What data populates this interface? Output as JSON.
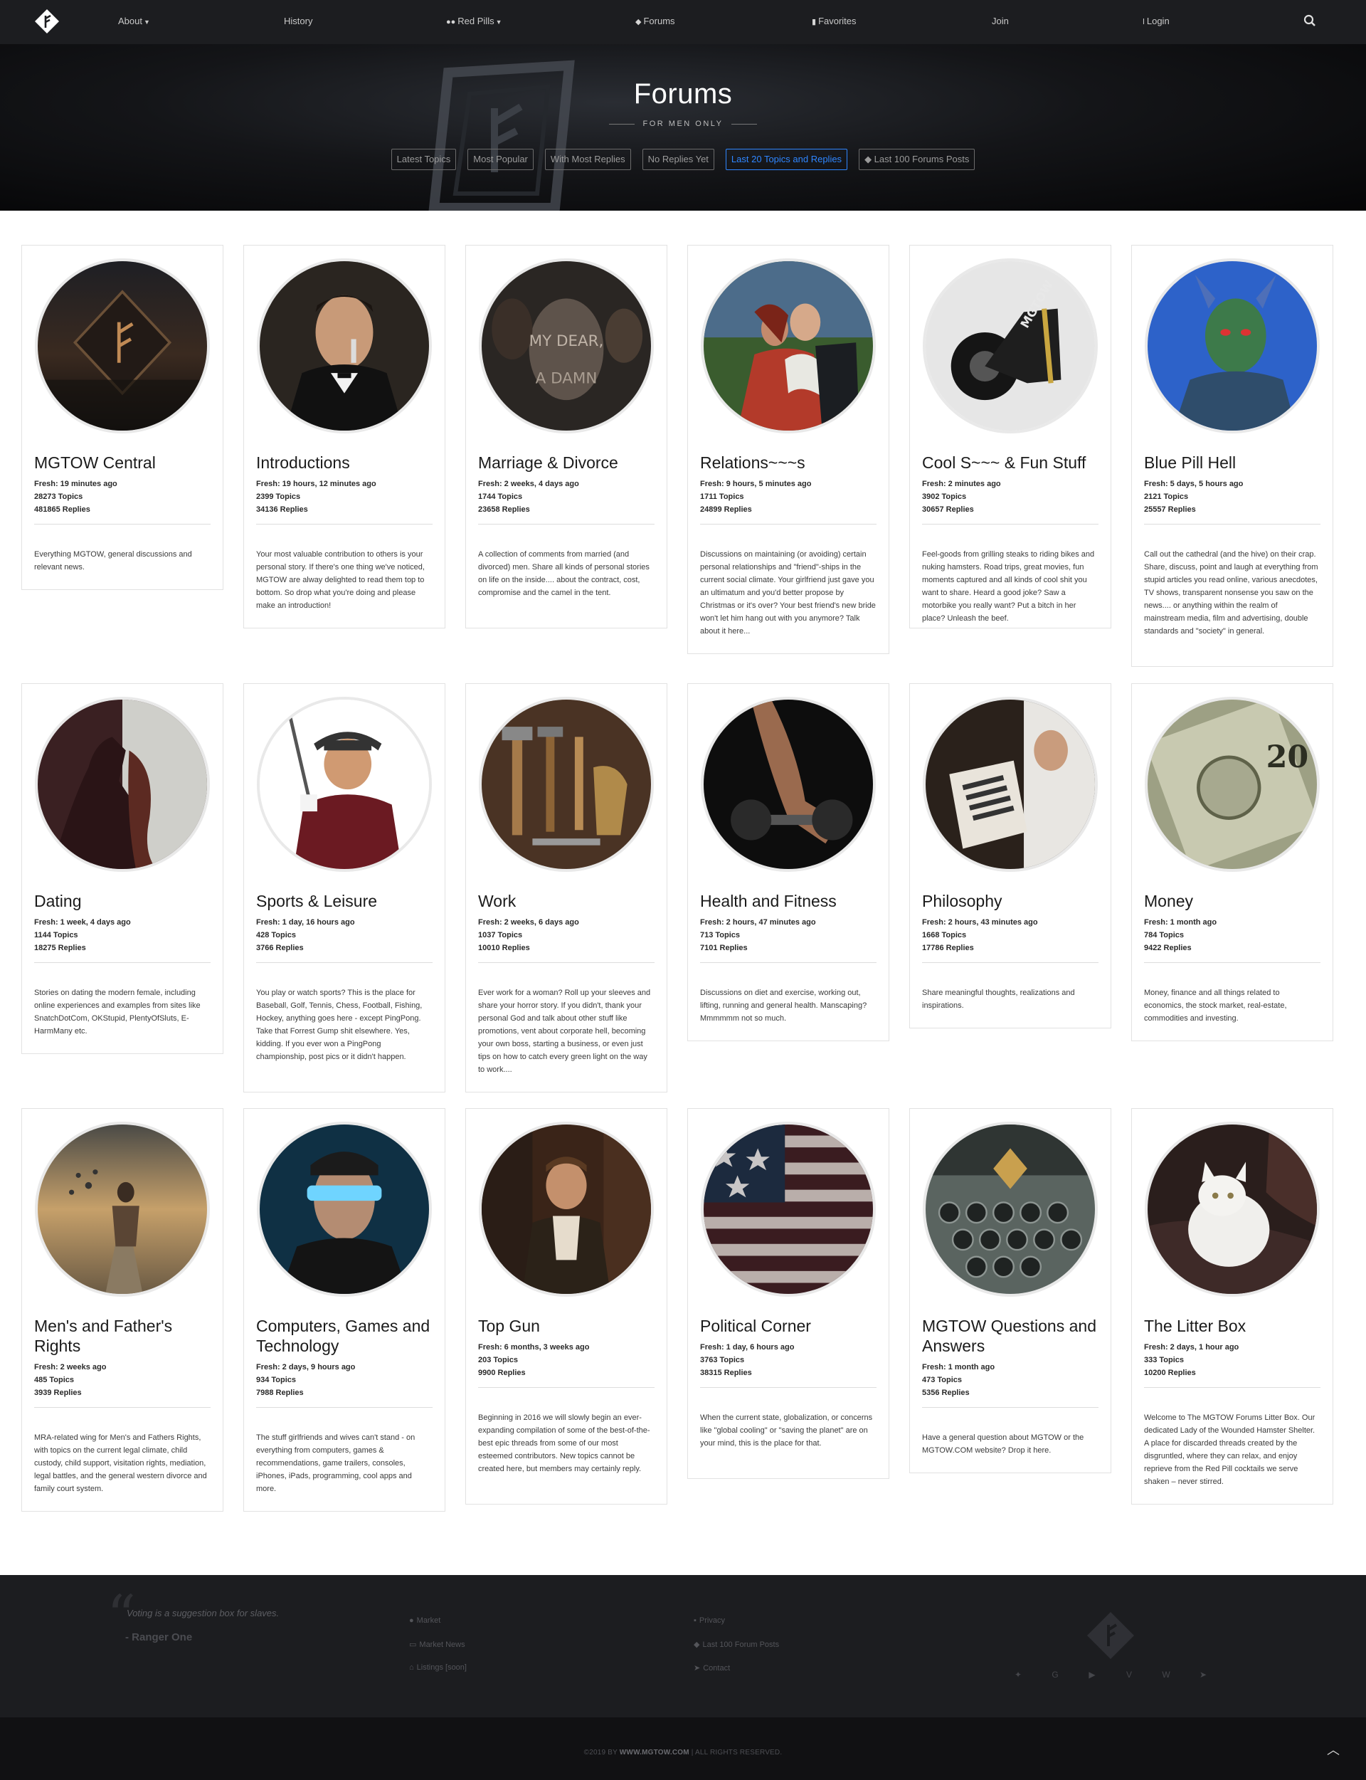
{
  "nav": {
    "about": "About",
    "history": "History",
    "red_pills": "Red Pills",
    "forums": "Forums",
    "favorites": "Favorites",
    "join": "Join",
    "login": "Login"
  },
  "hero": {
    "title": "Forums",
    "subtitle": "FOR MEN ONLY",
    "buttons": [
      "Latest Topics",
      "Most Popular",
      "With Most Replies",
      "No Replies Yet",
      "Last 20 Topics and Replies",
      "Last 100 Forums Posts"
    ],
    "active_button": "Last 20 Topics and Replies"
  },
  "forums": [
    {
      "title": "MGTOW Central",
      "fresh": "Fresh: 19 minutes ago",
      "topics": "28273 Topics",
      "replies": "481865 Replies",
      "desc": "Everything MGTOW, general discussions and relevant news.",
      "image": "diamond-logo-city"
    },
    {
      "title": "Introductions",
      "fresh": "Fresh: 19 hours, 12 minutes ago",
      "topics": "2399 Topics",
      "replies": "34136 Replies",
      "desc": "Your most valuable contribution to others is your personal story. If there's one thing we've noticed, MGTOW are alway delighted to read them top to bottom. So drop what you're doing and please make an introduction!",
      "image": "man-in-tuxedo"
    },
    {
      "title": "Marriage & Divorce",
      "fresh": "Fresh: 2 weeks, 4 days ago",
      "topics": "1744 Topics",
      "replies": "23658 Replies",
      "desc": "A collection of comments from married (and divorced) men. Share all kinds of personal stories on life on the inside.... about the contract, cost, compromise and the camel in the tent.",
      "image": "frankly-my-dear",
      "image_text": [
        "MY DEAR,",
        "A DAMN"
      ]
    },
    {
      "title": "Relations~~~s",
      "fresh": "Fresh: 9 hours, 5 minutes ago",
      "topics": "1711 Topics",
      "replies": "24899 Replies",
      "desc": "Discussions on maintaining (or avoiding) certain personal relationships and \"friend\"-ships in the current social climate. Your girlfriend just gave you an ultimatum and you'd better propose by Christmas or it's over? Your best friend's new bride won't let him hang out with you anymore? Talk about it here...",
      "image": "couple-kissing"
    },
    {
      "title": "Cool S~~~ & Fun Stuff",
      "fresh": "Fresh: 2 minutes ago",
      "topics": "3902 Topics",
      "replies": "30657 Replies",
      "desc": "Feel-goods from grilling steaks to riding bikes and nuking hamsters. Road trips, great movies, fun moments captured and all kinds of cool shit you want to share. Heard a good joke? Saw a motorbike you really want? Put a bitch in her place? Unleash the beef.",
      "image": "motorcycle",
      "image_text": [
        "MGTOW"
      ]
    },
    {
      "title": "Blue Pill Hell",
      "fresh": "Fresh: 5 days, 5 hours ago",
      "topics": "2121 Topics",
      "replies": "25557 Replies",
      "desc": "Call out the cathedral (and the hive) on their crap. Share, discuss, point and laugh at everything from stupid articles you read online, various anecdotes, TV shows, transparent nonsense you saw on the news.... or anything within the realm of mainstream media, film and advertising, double standards and \"society\" in general.",
      "image": "blue-devil"
    },
    {
      "title": "Dating",
      "fresh": "Fresh: 1 week, 4 days ago",
      "topics": "1144 Topics",
      "replies": "18275 Replies",
      "desc": "Stories on dating the modern female, including online experiences and examples from sites like SnatchDotCom, OKStupid, PlentyOfSluts, E-HarmMany etc.",
      "image": "woman-silhouette"
    },
    {
      "title": "Sports & Leisure",
      "fresh": "Fresh: 1 day, 16 hours ago",
      "topics": "428 Topics",
      "replies": "3766 Replies",
      "desc": "You play or watch sports? This is the place for Baseball, Golf, Tennis, Chess, Football, Fishing, Hockey, anything goes here - except PingPong. Take that Forrest Gump shit elsewhere. Yes, kidding. If you ever won a PingPong championship, post pics or it didn't happen.",
      "image": "golfer"
    },
    {
      "title": "Work",
      "fresh": "Fresh: 2 weeks, 6 days ago",
      "topics": "1037 Topics",
      "replies": "10010 Replies",
      "desc": "Ever work for a woman? Roll up your sleeves and share your horror story. If you didn't, thank your personal God and talk about other stuff like promotions, vent about corporate hell, becoming your own boss, starting a business, or even just tips on how to catch every green light on the way to work....",
      "image": "tools"
    },
    {
      "title": "Health and Fitness",
      "fresh": "Fresh: 2 hours, 47 minutes ago",
      "topics": "713 Topics",
      "replies": "7101 Replies",
      "desc": "Discussions on diet and exercise, working out, lifting, running and general health. Manscaping? Mmmmmm not so much.",
      "image": "dumbbell"
    },
    {
      "title": "Philosophy",
      "fresh": "Fresh: 2 hours, 43 minutes ago",
      "topics": "1668 Topics",
      "replies": "17786 Replies",
      "desc": "Share meaningful thoughts, realizations and inspirations.",
      "image": "man-reading"
    },
    {
      "title": "Money",
      "fresh": "Fresh: 1 month ago",
      "topics": "784 Topics",
      "replies": "9422 Replies",
      "desc": "Money, finance and all things related to economics, the stock market, real-estate, commodities and investing.",
      "image": "dollar-bills",
      "image_text": [
        "20"
      ]
    },
    {
      "title": "Men's and Father's Rights",
      "fresh": "Fresh: 2 weeks ago",
      "topics": "485 Topics",
      "replies": "3939 Replies",
      "desc": "MRA-related wing for Men's and Fathers Rights, with topics on the current legal climate, child custody, child support, visitation rights, mediation, legal battles, and the general western divorce and family court system.",
      "image": "man-disintegrating"
    },
    {
      "title": "Computers, Games and Technology",
      "fresh": "Fresh: 2 days, 9 hours ago",
      "topics": "934 Topics",
      "replies": "7988 Replies",
      "desc": "The stuff girlfriends and wives can't stand - on everything from computers, games & recommendations, game trailers, consoles, iPhones, iPads, programming, cool apps and more.",
      "image": "vr-visor"
    },
    {
      "title": "Top Gun",
      "fresh": "Fresh: 6 months, 3 weeks ago",
      "topics": "203 Topics",
      "replies": "9900 Replies",
      "desc": "Beginning in 2016 we will slowly begin an ever-expanding compilation of some of the best-of-the-best epic threads from some of our most esteemed contributors. New topics cannot be created here, but members may certainly reply.",
      "image": "pilot-in-cockpit"
    },
    {
      "title": "Political Corner",
      "fresh": "Fresh: 1 day, 6 hours ago",
      "topics": "3763 Topics",
      "replies": "38315 Replies",
      "desc": "When the current state, globalization, or concerns like \"global cooling\" or \"saving the planet\" are on your mind, this is the place for that.",
      "image": "us-flag"
    },
    {
      "title": "MGTOW Questions and Answers",
      "fresh": "Fresh: 1 month ago",
      "topics": "473 Topics",
      "replies": "5356 Replies",
      "desc": "Have a general question about MGTOW or the MGTOW.COM website? Drop it here.",
      "image": "typewriter"
    },
    {
      "title": "The Litter Box",
      "fresh": "Fresh: 2 days, 1 hour ago",
      "topics": "333 Topics",
      "replies": "10200 Replies",
      "desc": "Welcome to The MGTOW Forums Litter Box. Our dedicated Lady of the Wounded Hamster Shelter. A place for discarded threads created by the disgruntled, where they can relax, and enjoy reprieve from the Red Pill cocktails we serve shaken – never stirred.",
      "image": "white-cat"
    }
  ],
  "footer": {
    "quote": "Voting is a suggestion box for slaves.",
    "quote_author": "- Ranger One",
    "col1": [
      "Market",
      "Market News",
      "Listings [soon]"
    ],
    "col2": [
      "Privacy",
      "Last 100 Forum Posts",
      "Contact"
    ],
    "social": [
      "twitter-icon",
      "google-plus-icon",
      "youtube-icon",
      "vimeo-icon",
      "vk-icon",
      "telegram-icon"
    ],
    "copyright_prefix": "©2019 BY",
    "copyright_site": "WWW.MGTOW.COM",
    "copyright_suffix": "| ALL RIGHTS RESERVED."
  },
  "colors": {
    "nav_bg": "#1c1d20",
    "accent": "#2f86ff",
    "footer_bg": "#1c1d20",
    "bottom_bg": "#111113"
  }
}
